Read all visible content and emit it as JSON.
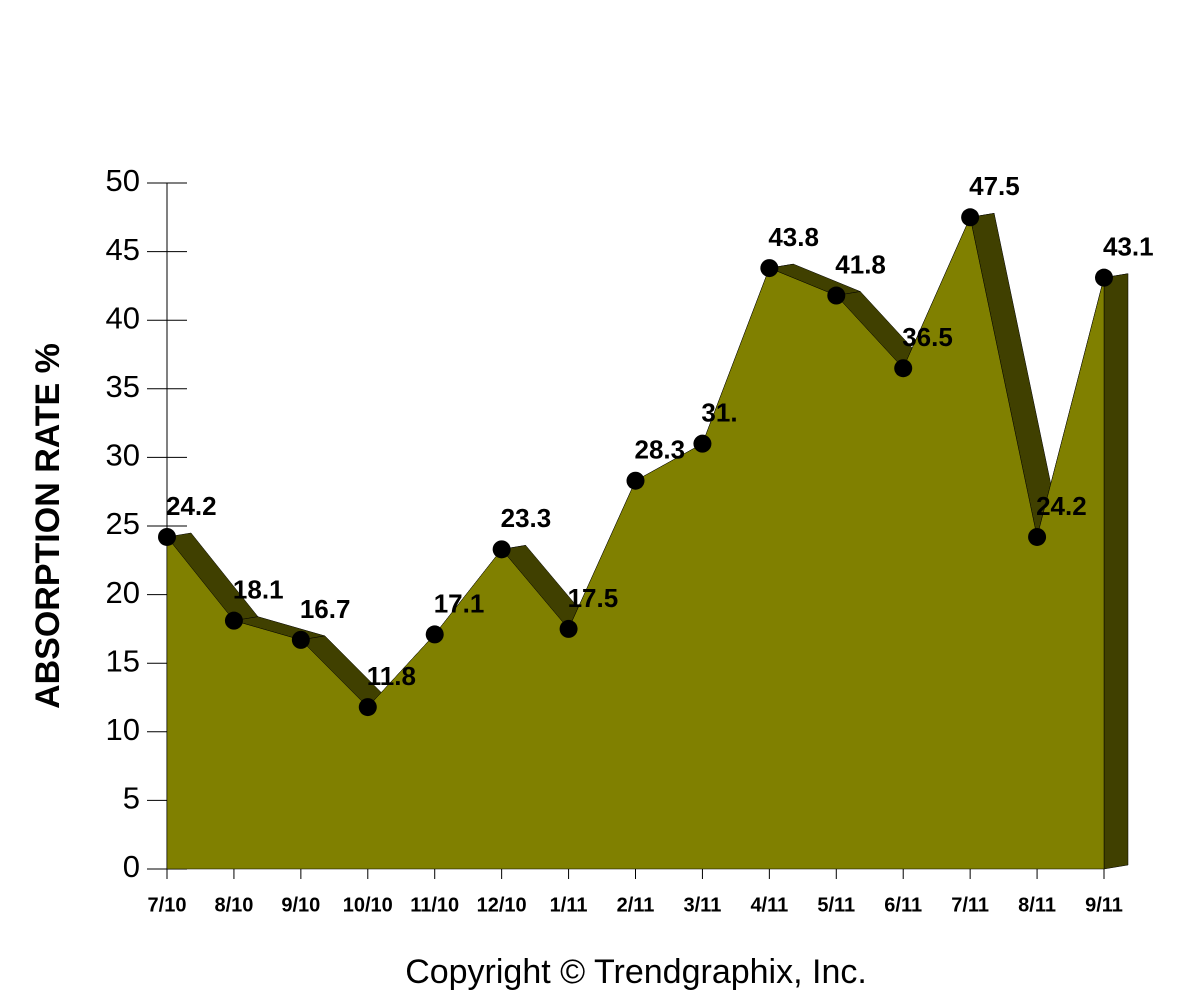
{
  "chart_data": {
    "type": "area3d",
    "y_label": "ABSORPTION RATE %",
    "caption": "Copyright © Trendgraphix, Inc.",
    "categories": [
      "7/10",
      "8/10",
      "9/10",
      "10/10",
      "11/10",
      "12/10",
      "1/11",
      "2/11",
      "3/11",
      "4/11",
      "5/11",
      "6/11",
      "7/11",
      "8/11",
      "9/11"
    ],
    "values": [
      24.2,
      18.1,
      16.7,
      11.8,
      17.1,
      23.3,
      17.5,
      28.3,
      31,
      43.8,
      41.8,
      36.5,
      47.5,
      24.2,
      43.1
    ],
    "value_labels": [
      "24.2",
      "18.1",
      "16.7",
      "11.8",
      "17.1",
      "23.3",
      "17.5",
      "28.3",
      "31.",
      "43.8",
      "41.8",
      "36.5",
      "47.5",
      "24.2",
      "43.1"
    ],
    "color": "#808000",
    "side_color": "#404000",
    "marker_color": "#000000",
    "ylim": [
      0,
      50
    ],
    "yticks": [
      0,
      5,
      10,
      15,
      20,
      25,
      30,
      35,
      40,
      45,
      50
    ]
  }
}
